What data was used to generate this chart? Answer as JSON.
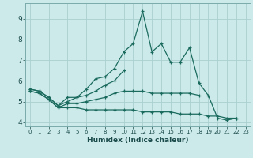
{
  "title": "",
  "xlabel": "Humidex (Indice chaleur)",
  "ylabel": "",
  "background_color": "#cdeaea",
  "grid_color": "#aacfcf",
  "line_color": "#1a6b5e",
  "xlim": [
    -0.5,
    23.5
  ],
  "ylim": [
    3.8,
    9.75
  ],
  "yticks": [
    4,
    5,
    6,
    7,
    8,
    9
  ],
  "xticks": [
    0,
    1,
    2,
    3,
    4,
    5,
    6,
    7,
    8,
    9,
    10,
    11,
    12,
    13,
    14,
    15,
    16,
    17,
    18,
    19,
    20,
    21,
    22,
    23
  ],
  "line1_x": [
    0,
    1,
    2,
    3,
    4,
    5,
    6,
    7,
    8,
    9,
    10,
    11,
    12,
    13,
    14,
    15,
    16,
    17,
    18,
    19,
    20,
    21,
    22
  ],
  "line1_y": [
    5.6,
    5.5,
    5.2,
    4.8,
    5.2,
    5.2,
    5.6,
    6.1,
    6.2,
    6.6,
    7.4,
    7.8,
    9.35,
    7.4,
    7.8,
    6.9,
    6.9,
    7.6,
    5.9,
    5.3,
    4.2,
    4.1,
    4.2
  ],
  "line2_x": [
    0,
    1,
    2,
    3,
    4,
    5,
    6,
    7,
    8,
    9,
    10
  ],
  "line2_y": [
    5.6,
    5.5,
    5.2,
    4.8,
    5.0,
    5.2,
    5.3,
    5.5,
    5.8,
    6.0,
    6.5
  ],
  "line3_x": [
    0,
    1,
    2,
    3,
    4,
    5,
    6,
    7,
    8,
    9,
    10,
    11,
    12,
    13,
    14,
    15,
    16,
    17,
    18
  ],
  "line3_y": [
    5.5,
    5.4,
    5.1,
    4.7,
    4.9,
    4.9,
    5.0,
    5.1,
    5.2,
    5.4,
    5.5,
    5.5,
    5.5,
    5.4,
    5.4,
    5.4,
    5.4,
    5.4,
    5.3
  ],
  "line4_x": [
    0,
    1,
    2,
    3,
    4,
    5,
    6,
    7,
    8,
    9,
    10,
    11,
    12,
    13,
    14,
    15,
    16,
    17,
    18,
    19,
    20,
    21,
    22
  ],
  "line4_y": [
    5.5,
    5.4,
    5.1,
    4.7,
    4.7,
    4.7,
    4.6,
    4.6,
    4.6,
    4.6,
    4.6,
    4.6,
    4.5,
    4.5,
    4.5,
    4.5,
    4.4,
    4.4,
    4.4,
    4.3,
    4.3,
    4.2,
    4.2
  ]
}
